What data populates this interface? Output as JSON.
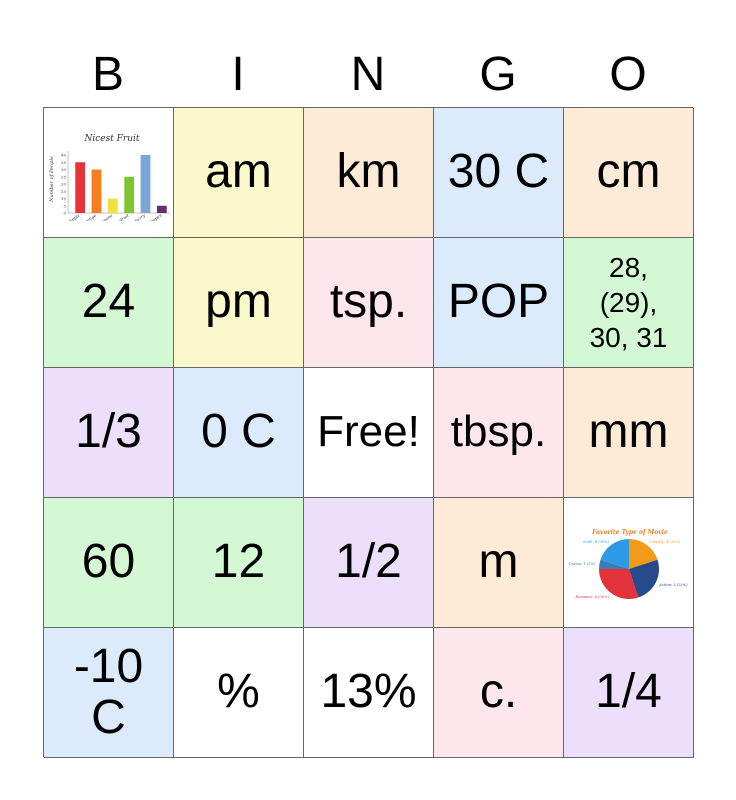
{
  "header": {
    "letters": [
      "B",
      "I",
      "N",
      "G",
      "O"
    ]
  },
  "cells": {
    "r1": [
      "",
      "am",
      "km",
      "30 C",
      "cm"
    ],
    "r2": [
      "24",
      "pm",
      "tsp.",
      "POP",
      "28, (29), 30, 31"
    ],
    "r3": [
      "1/3",
      "0 C",
      "Free!",
      "tbsp.",
      "mm"
    ],
    "r4": [
      "60",
      "12",
      "1/2",
      "m",
      ""
    ],
    "r5": [
      "-10 C",
      "%",
      "13%",
      "c.",
      "1/4"
    ]
  },
  "bar_chart_image": {
    "title": "Nicest Fruit",
    "ylabel": "Number of People",
    "yticks": [
      "40",
      "35",
      "30",
      "25",
      "20",
      "15",
      "10",
      "5",
      "0"
    ],
    "categories": [
      "Apple",
      "Orange",
      "Banana",
      "Kiwifruit",
      "Blueberry",
      "Grapes"
    ],
    "values": [
      35,
      30,
      10,
      25,
      40,
      5
    ],
    "colors": [
      "#e8323a",
      "#f57f1f",
      "#f3e23a",
      "#7ec42e",
      "#7ba7d6",
      "#63306b"
    ]
  },
  "pie_chart_image": {
    "title": "Favorite Type of Movie",
    "slices": [
      {
        "label": "Comedy: 4 (20%)",
        "value": 20,
        "color": "#f39a18"
      },
      {
        "label": "Action: 5 (25%)",
        "value": 25,
        "color": "#264a8c"
      },
      {
        "label": "Romance: 6 (30%)",
        "value": 30,
        "color": "#e2333a"
      },
      {
        "label": "Drama: 1 (5%)",
        "value": 5,
        "color": "#3c7ab8"
      },
      {
        "label": "SciFi: 4 (20%)",
        "value": 20,
        "color": "#2d9ae4"
      }
    ]
  }
}
